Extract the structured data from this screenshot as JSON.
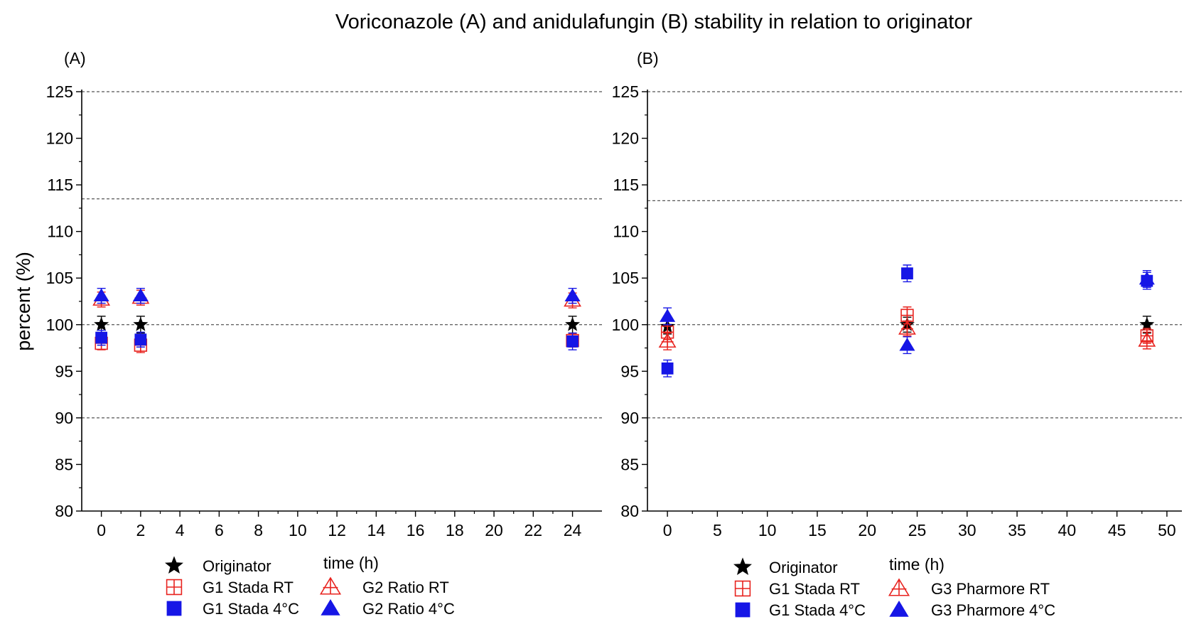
{
  "figure_title": "Voriconazole (A) and anidulafungin (B) stability in relation to originator",
  "colors": {
    "originator": "#000000",
    "rt": "#e8231f",
    "cold": "#1616e6",
    "reference_lines": "#555555"
  },
  "chart_data": [
    {
      "type": "scatter",
      "panel_label": "(A)",
      "title": "",
      "xlabel": "time (h)",
      "ylabel": "percent (%)",
      "xlim": [
        -1,
        25.5
      ],
      "ylim": [
        80,
        125
      ],
      "x_ticks": [
        0,
        2,
        4,
        6,
        8,
        10,
        12,
        14,
        16,
        18,
        20,
        22,
        24
      ],
      "y_ticks": [
        80,
        85,
        90,
        95,
        100,
        105,
        110,
        115,
        120,
        125
      ],
      "reference_lines": [
        125,
        113.5,
        100,
        90
      ],
      "grid": false,
      "legend_position": "bottom",
      "series": [
        {
          "name": "Originator",
          "marker": "star",
          "color": "#000000",
          "x": [
            0,
            2,
            24
          ],
          "y": [
            100,
            100,
            100
          ],
          "error": [
            0.9,
            0.9,
            0.9
          ]
        },
        {
          "name": "G1 Stada RT",
          "marker": "square-cross-open",
          "color": "#e8231f",
          "x": [
            0,
            2,
            24
          ],
          "y": [
            98.0,
            97.8,
            98.3
          ],
          "error": [
            0.7,
            0.8,
            0.7
          ]
        },
        {
          "name": "G1 Stada 4°C",
          "marker": "square-filled",
          "color": "#1616e6",
          "x": [
            0,
            2,
            24
          ],
          "y": [
            98.6,
            98.4,
            98.2
          ],
          "error": [
            0.8,
            0.8,
            0.9
          ]
        },
        {
          "name": "G2 Ratio RT",
          "marker": "triangle-cross-open",
          "color": "#e8231f",
          "x": [
            0,
            2,
            24
          ],
          "y": [
            102.7,
            102.9,
            102.6
          ],
          "error": [
            0.8,
            0.8,
            0.8
          ]
        },
        {
          "name": "G2 Ratio 4°C",
          "marker": "triangle-filled",
          "color": "#1616e6",
          "x": [
            0,
            2,
            24
          ],
          "y": [
            103.1,
            103.1,
            103.1
          ],
          "error": [
            0.8,
            0.8,
            0.8
          ]
        }
      ]
    },
    {
      "type": "scatter",
      "panel_label": "(B)",
      "title": "",
      "xlabel": "time (h)",
      "ylabel": "",
      "xlim": [
        -2,
        51.5
      ],
      "ylim": [
        80,
        125
      ],
      "x_ticks": [
        0,
        5,
        10,
        15,
        20,
        25,
        30,
        35,
        40,
        45,
        50
      ],
      "y_ticks": [
        80,
        85,
        90,
        95,
        100,
        105,
        110,
        115,
        120,
        125
      ],
      "reference_lines": [
        125,
        113.3,
        100,
        90
      ],
      "grid": false,
      "legend_position": "bottom",
      "series": [
        {
          "name": "Originator",
          "marker": "star",
          "color": "#000000",
          "x": [
            0,
            24,
            48
          ],
          "y": [
            99.8,
            100,
            100
          ],
          "error": [
            0.8,
            0.8,
            0.9
          ]
        },
        {
          "name": "G1 Stada RT",
          "marker": "square-cross-open",
          "color": "#e8231f",
          "x": [
            0,
            24,
            48
          ],
          "y": [
            99.2,
            101.0,
            98.8
          ],
          "error": [
            0.8,
            0.9,
            0.8
          ]
        },
        {
          "name": "G1 Stada 4°C",
          "marker": "square-filled",
          "color": "#1616e6",
          "x": [
            0,
            24,
            48
          ],
          "y": [
            95.3,
            105.5,
            104.7
          ],
          "error": [
            0.9,
            0.9,
            0.9
          ]
        },
        {
          "name": "G3 Pharmore RT",
          "marker": "triangle-cross-open",
          "color": "#e8231f",
          "x": [
            0,
            24,
            48
          ],
          "y": [
            98.2,
            99.6,
            98.3
          ],
          "error": [
            0.9,
            0.8,
            0.9
          ]
        },
        {
          "name": "G3 Pharmore 4°C",
          "marker": "triangle-filled",
          "color": "#1616e6",
          "x": [
            0,
            24,
            48
          ],
          "y": [
            100.9,
            97.8,
            104.9
          ],
          "error": [
            0.9,
            0.9,
            0.9
          ]
        }
      ]
    }
  ]
}
